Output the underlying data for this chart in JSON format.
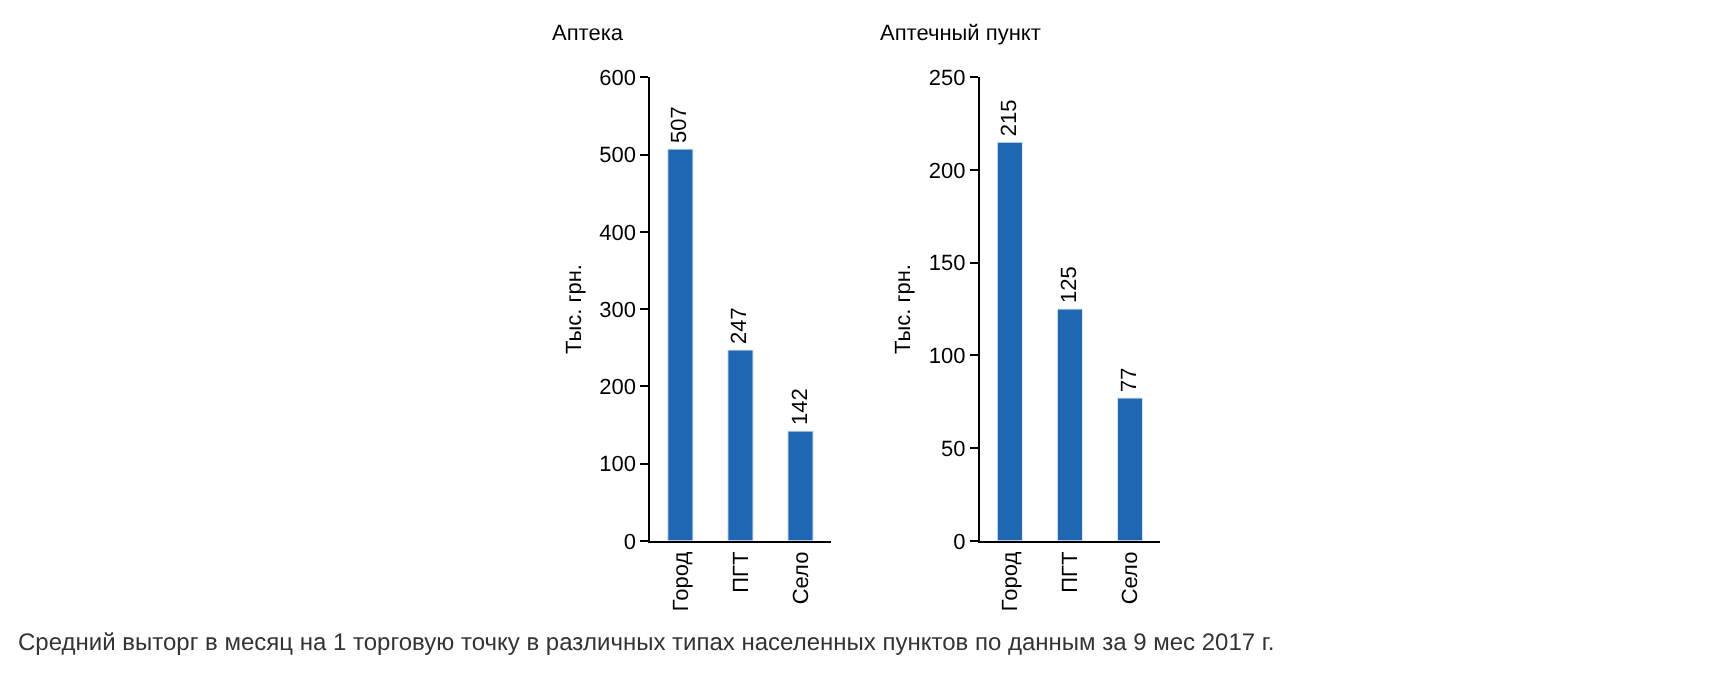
{
  "chart_data": [
    {
      "type": "bar",
      "title": "Аптека",
      "ylabel": "Тыс. грн.",
      "categories": [
        "Город",
        "ПГТ",
        "Село"
      ],
      "values": [
        507,
        247,
        142
      ],
      "color": "#1f66b3",
      "ylim": [
        0,
        600
      ],
      "yticks": [
        0,
        100,
        200,
        300,
        400,
        500,
        600
      ],
      "data_labels": true,
      "annotations": [
        "Средний выторг в месяц на 1 торговую точку в различных типах населенных пунктов по данным за 9 мес 2017 г."
      ]
    },
    {
      "type": "bar",
      "title": "Аптечный пункт",
      "ylabel": "Тыс. грн.",
      "categories": [
        "Город",
        "ПГТ",
        "Село"
      ],
      "values": [
        215,
        125,
        77
      ],
      "color": "#1f66b3",
      "ylim": [
        0,
        250
      ],
      "yticks": [
        0,
        50,
        100,
        150,
        200,
        250
      ],
      "data_labels": true
    }
  ]
}
